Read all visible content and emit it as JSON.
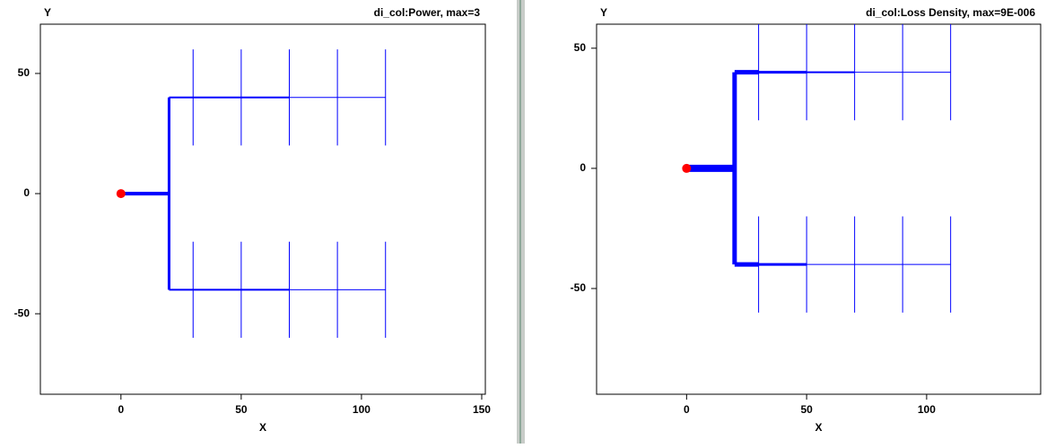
{
  "chart_data": [
    {
      "type": "line",
      "title": "di_col:Power, max=3",
      "xlabel": "X",
      "ylabel": "Y",
      "xlim": [
        -33.5,
        151.5
      ],
      "ylim": [
        -83.5,
        70.5
      ],
      "xticks": [
        0,
        50,
        100,
        150
      ],
      "yticks": [
        -50,
        0,
        50
      ],
      "series": [
        {
          "color": "#0000ff",
          "width": 4,
          "x": [
            0,
            20
          ],
          "values": [
            0,
            0
          ]
        },
        {
          "color": "#0000ff",
          "width": 3,
          "x": [
            20,
            20
          ],
          "values": [
            40,
            -40
          ]
        },
        {
          "color": "#0000ff",
          "width": 2,
          "x": [
            20,
            70,
            null,
            20,
            70
          ],
          "values": [
            40,
            40,
            null,
            -40,
            -40
          ]
        },
        {
          "color": "#0000ff",
          "width": 1,
          "x": [
            70,
            110,
            null,
            70,
            110,
            null,
            30,
            30,
            null,
            50,
            50,
            null,
            70,
            70,
            null,
            90,
            90,
            null,
            110,
            110,
            null,
            30,
            30,
            null,
            50,
            50,
            null,
            70,
            70,
            null,
            90,
            90,
            null,
            110,
            110
          ],
          "values": [
            40,
            40,
            null,
            -40,
            -40,
            null,
            60,
            20,
            null,
            60,
            20,
            null,
            60,
            20,
            null,
            60,
            20,
            null,
            60,
            20,
            null,
            -20,
            -60,
            null,
            -20,
            -60,
            null,
            -20,
            -60,
            null,
            -20,
            -60,
            null,
            -20,
            -60
          ]
        }
      ],
      "marker": {
        "x": 0,
        "y": 0,
        "color": "#ff0000"
      }
    },
    {
      "type": "line",
      "title": "di_col:Loss Density, max=9E-006",
      "xlabel": "X",
      "ylabel": "Y",
      "xlim": [
        -37.5,
        147.5
      ],
      "ylim": [
        -94,
        60
      ],
      "xticks": [
        0,
        50,
        100
      ],
      "yticks": [
        -50,
        0,
        50
      ],
      "series": [
        {
          "color": "#0000ff",
          "width": 8,
          "x": [
            0,
            20
          ],
          "values": [
            0,
            0
          ]
        },
        {
          "color": "#0000ff",
          "width": 5,
          "x": [
            20,
            20,
            null,
            20,
            30,
            null,
            20,
            30
          ],
          "values": [
            40,
            -40,
            null,
            40,
            40,
            null,
            -40,
            -40
          ]
        },
        {
          "color": "#0000ff",
          "width": 3,
          "x": [
            30,
            50,
            null,
            30,
            50
          ],
          "values": [
            40,
            40,
            null,
            -40,
            -40
          ]
        },
        {
          "color": "#0000ff",
          "width": 2,
          "x": [
            50,
            70
          ],
          "values": [
            40,
            40
          ]
        },
        {
          "color": "#0000ff",
          "width": 1,
          "x": [
            50,
            70,
            null,
            70,
            110,
            null,
            70,
            110,
            null,
            30,
            30,
            null,
            50,
            50,
            null,
            70,
            70,
            null,
            90,
            90,
            null,
            110,
            110,
            null,
            30,
            30,
            null,
            50,
            50,
            null,
            70,
            70,
            null,
            90,
            90,
            null,
            110,
            110
          ],
          "values": [
            -40,
            -40,
            null,
            40,
            40,
            null,
            -40,
            -40,
            null,
            60,
            20,
            null,
            60,
            20,
            null,
            60,
            20,
            null,
            60,
            20,
            null,
            60,
            20,
            null,
            -20,
            -60,
            null,
            -20,
            -60,
            null,
            -20,
            -60,
            null,
            -20,
            -60,
            null,
            -20,
            -60
          ]
        }
      ],
      "marker": {
        "x": 0,
        "y": 0,
        "color": "#ff0000"
      }
    }
  ]
}
